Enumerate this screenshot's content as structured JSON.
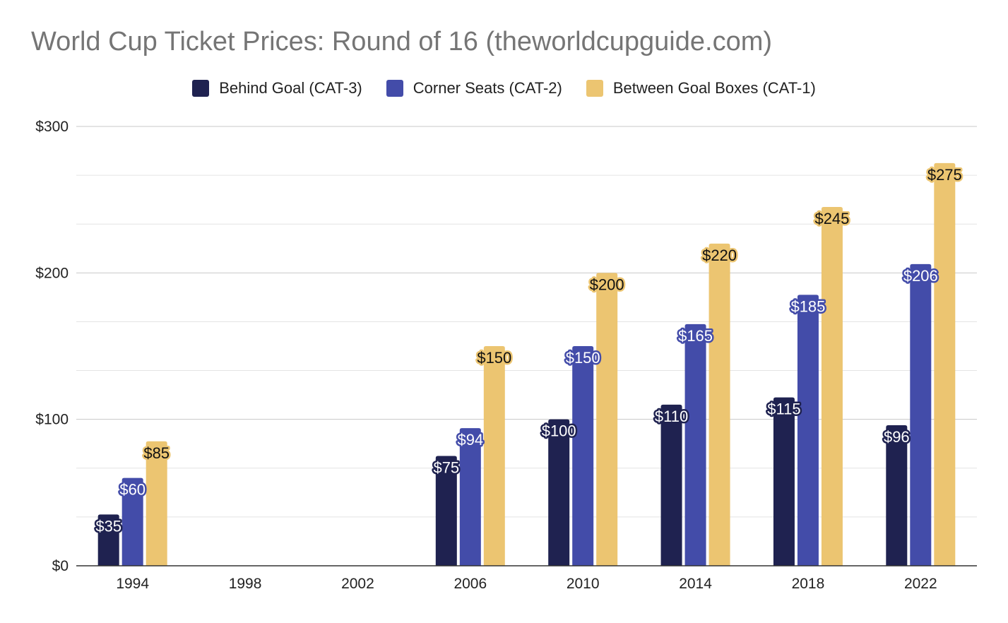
{
  "chart_data": {
    "type": "bar",
    "title": "World Cup Ticket Prices: Round of 16 (theworldcupguide.com)",
    "categories": [
      "1994",
      "1998",
      "2002",
      "2006",
      "2010",
      "2014",
      "2018",
      "2022"
    ],
    "series": [
      {
        "name": "Behind Goal (CAT-3)",
        "color": "#1f2250",
        "values": [
          35,
          null,
          null,
          75,
          100,
          110,
          115,
          96
        ]
      },
      {
        "name": "Corner Seats (CAT-2)",
        "color": "#434ca9",
        "values": [
          60,
          null,
          null,
          94,
          150,
          165,
          185,
          206
        ]
      },
      {
        "name": "Between Goal Boxes (CAT-1)",
        "color": "#ecc571",
        "values": [
          85,
          null,
          null,
          150,
          200,
          220,
          245,
          275
        ]
      }
    ],
    "data_labels": [
      [
        "$35",
        null,
        null,
        "$75",
        "$100",
        "$110",
        "$115",
        "$96"
      ],
      [
        "$60",
        null,
        null,
        "$94",
        "$150",
        "$165",
        "$185",
        "$206"
      ],
      [
        "$85",
        null,
        null,
        "$150",
        "$200",
        "$220",
        "$245",
        "$275"
      ]
    ],
    "label_colors": [
      "#ffffff",
      "#ffffff",
      "#111111"
    ],
    "ylim": [
      0,
      300
    ],
    "yticks": [
      0,
      100,
      200,
      300
    ],
    "ytick_labels": [
      "$0",
      "$100",
      "$200",
      "$300"
    ],
    "minor_gridlines": [
      33.33,
      66.67,
      133.33,
      166.67,
      233.33,
      266.67
    ],
    "xlabel": "",
    "ylabel": "",
    "grid": true,
    "legend_position": "top-center"
  }
}
